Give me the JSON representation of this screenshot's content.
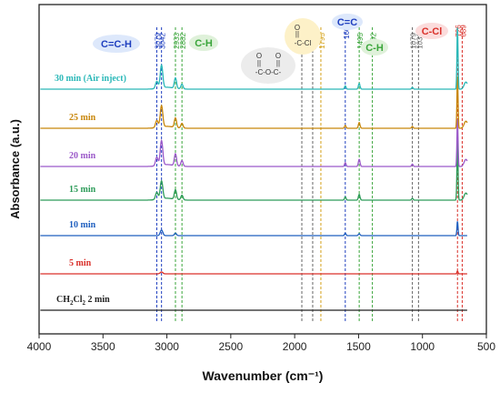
{
  "chart_data": {
    "type": "line",
    "xlabel": "Wavenumber (cm⁻¹)",
    "ylabel": "Absorbance (a.u.)",
    "xlim": [
      4000,
      500
    ],
    "x_ticks": [
      "4000",
      "3500",
      "3000",
      "2500",
      "2000",
      "1500",
      "1000",
      "500"
    ],
    "x_reversed": true,
    "y_ticks_shown": false,
    "grid": false,
    "series": [
      {
        "name": "CH2Cl2 2 min",
        "color": "#222222",
        "offset": 0,
        "peaks": []
      },
      {
        "name": "5 min",
        "color": "#d9302a",
        "offset": 1,
        "peaks": [
          {
            "x": 3042,
            "h": 0.04
          },
          {
            "x": 726,
            "h": 0.06
          }
        ]
      },
      {
        "name": "10 min",
        "color": "#1f5fbf",
        "offset": 2,
        "peaks": [
          {
            "x": 3042,
            "h": 0.12
          },
          {
            "x": 2933,
            "h": 0.05
          },
          {
            "x": 1604,
            "h": 0.05
          },
          {
            "x": 1495,
            "h": 0.04
          },
          {
            "x": 726,
            "h": 0.3
          }
        ]
      },
      {
        "name": "15 min",
        "color": "#2e9c5a",
        "offset": 3,
        "peaks": [
          {
            "x": 3079,
            "h": 0.15
          },
          {
            "x": 3042,
            "h": 0.38
          },
          {
            "x": 2933,
            "h": 0.2
          },
          {
            "x": 2882,
            "h": 0.1
          },
          {
            "x": 1604,
            "h": 0.07
          },
          {
            "x": 1495,
            "h": 0.12
          },
          {
            "x": 1079,
            "h": 0.04
          },
          {
            "x": 726,
            "h": 1.25
          }
        ]
      },
      {
        "name": "20 min",
        "color": "#9b59c9",
        "offset": 4,
        "peaks": [
          {
            "x": 3079,
            "h": 0.18
          },
          {
            "x": 3042,
            "h": 0.52
          },
          {
            "x": 2933,
            "h": 0.25
          },
          {
            "x": 2882,
            "h": 0.12
          },
          {
            "x": 1604,
            "h": 0.08
          },
          {
            "x": 1495,
            "h": 0.15
          },
          {
            "x": 1079,
            "h": 0.05
          },
          {
            "x": 726,
            "h": 1.0
          }
        ]
      },
      {
        "name": "25 min",
        "color": "#c8860a",
        "offset": 5,
        "peaks": [
          {
            "x": 3079,
            "h": 0.15
          },
          {
            "x": 3042,
            "h": 0.45
          },
          {
            "x": 2933,
            "h": 0.2
          },
          {
            "x": 2882,
            "h": 0.1
          },
          {
            "x": 1604,
            "h": 0.06
          },
          {
            "x": 1495,
            "h": 0.12
          },
          {
            "x": 1079,
            "h": 0.04
          },
          {
            "x": 726,
            "h": 1.1
          }
        ]
      },
      {
        "name": "30 min (Air inject)",
        "color": "#2ab8b8",
        "offset": 6,
        "peaks": [
          {
            "x": 3079,
            "h": 0.15
          },
          {
            "x": 3042,
            "h": 0.48
          },
          {
            "x": 2933,
            "h": 0.22
          },
          {
            "x": 2882,
            "h": 0.1
          },
          {
            "x": 1604,
            "h": 0.07
          },
          {
            "x": 1495,
            "h": 0.12
          },
          {
            "x": 1079,
            "h": 0.04
          },
          {
            "x": 726,
            "h": 1.3
          }
        ]
      }
    ],
    "series_label_texts": [
      "CH",
      "2",
      "Cl",
      "2",
      " 2 min"
    ],
    "reference_lines": [
      {
        "x": 3079,
        "label": "3079",
        "color": "#1f3fbf"
      },
      {
        "x": 3042,
        "label": "3042",
        "color": "#1f3fbf"
      },
      {
        "x": 2933,
        "label": "2933",
        "color": "#3aa53a"
      },
      {
        "x": 2882,
        "label": "2882",
        "color": "#3aa53a"
      },
      {
        "x": 1944,
        "label": "1944",
        "color": "#666666"
      },
      {
        "x": 1859,
        "label": "1859",
        "color": "#666666"
      },
      {
        "x": 1795,
        "label": "1795",
        "color": "#d4a017"
      },
      {
        "x": 1604,
        "label": "1604",
        "color": "#1f3fbf"
      },
      {
        "x": 1495,
        "label": "1495",
        "color": "#3aa53a"
      },
      {
        "x": 1392,
        "label": "1392",
        "color": "#3aa53a"
      },
      {
        "x": 1079,
        "label": "1079",
        "color": "#666666"
      },
      {
        "x": 1031,
        "label": "1031",
        "color": "#666666"
      },
      {
        "x": 726,
        "label": "726",
        "color": "#d9302a"
      },
      {
        "x": 689,
        "label": "689",
        "color": "#d9302a"
      }
    ],
    "annotations": {
      "c_eq_c_h": {
        "part1": "C",
        "part2": "=C-H",
        "bg": "#dde8fb",
        "color1": "#1f3fbf",
        "color2": "#1f3fbf"
      },
      "c_h_1": {
        "text": "C-H",
        "bg": "#dff1da",
        "color": "#3aa53a"
      },
      "anhydride": {
        "o1": "O",
        "o2": "O",
        "eq1": "||",
        "eq2": "||",
        "formula": "-C-O-C-",
        "bg": "#ececec"
      },
      "acyl": {
        "o": "O",
        "eq": "||",
        "formula": "-C-Cl",
        "bg": "#fdf1c8",
        "color": "#b8860b"
      },
      "c_eq_c": {
        "text": "C=C",
        "bg": "#dde8fb",
        "color": "#1f3fbf"
      },
      "c_h_2": {
        "text": "C-H",
        "bg": "#dff1da",
        "color": "#3aa53a"
      },
      "c_cl": {
        "text": "C-Cl",
        "bg": "#fbdcdc",
        "color": "#d9302a"
      }
    }
  }
}
